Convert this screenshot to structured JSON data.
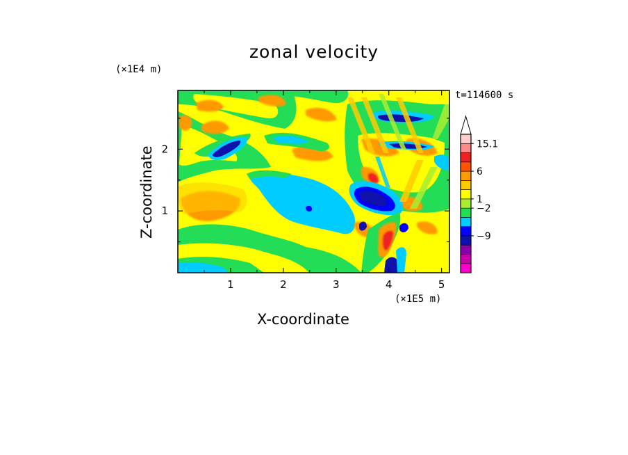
{
  "chart_data": {
    "type": "heatmap",
    "title": "zonal velocity",
    "xlabel": "X-coordinate",
    "ylabel": "Z-coordinate",
    "x_unit_label": "(×1E5 m)",
    "z_unit_label": "(×1E4 m)",
    "time_label": "t=114600 s",
    "x_ticks": [
      "1",
      "2",
      "3",
      "4",
      "5"
    ],
    "z_ticks": [
      "1",
      "2"
    ],
    "xlim": [
      0,
      5.15
    ],
    "zlim": [
      0,
      2.95
    ],
    "colorbar": {
      "labels": [
        "15.1",
        "6",
        "1",
        "−2",
        "−9"
      ],
      "colors": [
        "#ff00cc",
        "#cc00aa",
        "#8800aa",
        "#1010aa",
        "#0000ff",
        "#00ccff",
        "#22dd55",
        "#aaee33",
        "#ffff00",
        "#ffcc00",
        "#ff9900",
        "#ff5500",
        "#ee2222",
        "#ff8888",
        "#ffcccc"
      ]
    },
    "background_color": "#ffff00"
  }
}
